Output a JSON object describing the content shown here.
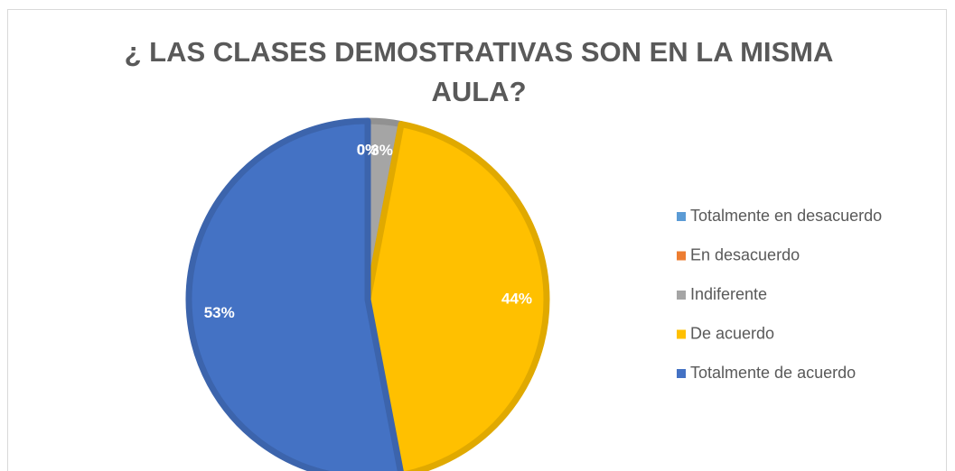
{
  "chart_data": {
    "type": "pie",
    "title": "¿ LAS CLASES DEMOSTRATIVAS SON EN LA MISMA AULA?",
    "categories": [
      "Totalmente en desacuerdo",
      "En desacuerdo",
      "Indiferente",
      "De acuerdo",
      "Totalmente de acuerdo"
    ],
    "values": [
      0,
      0,
      3,
      44,
      53
    ],
    "value_labels": [
      "0%",
      "0%",
      "3%",
      "44%",
      "53%"
    ],
    "colors": [
      "#5b9bd5",
      "#ed7d31",
      "#a5a5a5",
      "#ffc000",
      "#4472c4"
    ],
    "legend": "right"
  }
}
